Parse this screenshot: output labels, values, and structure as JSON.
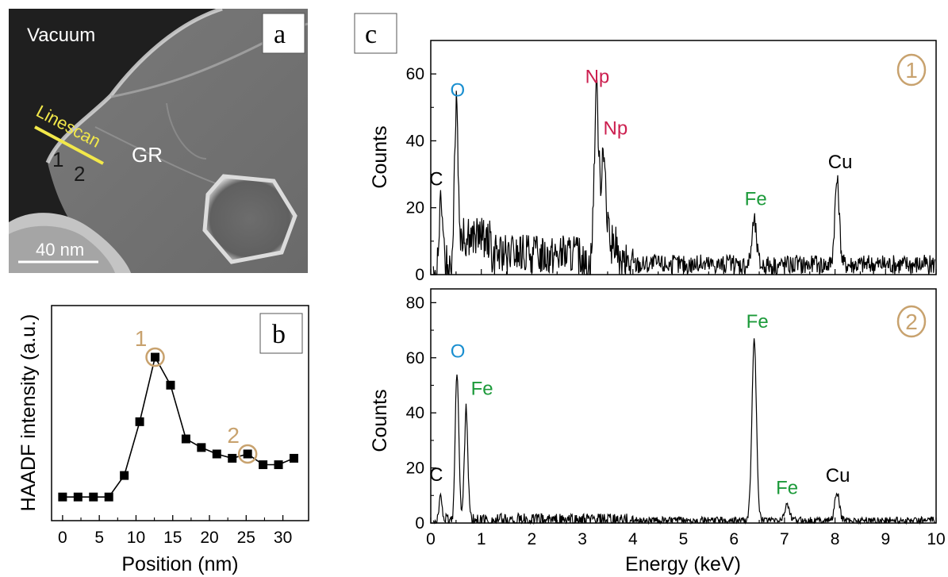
{
  "panel_a": {
    "letter": "a",
    "labels": {
      "vacuum": "Vacuum",
      "gr": "GR",
      "linescan": "Linescan",
      "point1": "1",
      "point2": "2"
    },
    "scale_bar": "40 nm"
  },
  "panel_b": {
    "letter": "b",
    "marker_labels": {
      "p1": "1",
      "p2": "2"
    }
  },
  "panel_c": {
    "letter": "c",
    "spectrum1_marker": "1",
    "spectrum2_marker": "2",
    "shared_xlabel": "Energy (keV)"
  },
  "colors": {
    "O": "#1a8fd0",
    "Np": "#cc1f4f",
    "Fe": "#1c9a3a",
    "C": "#000000",
    "Cu": "#000000",
    "marker_ring": "#c8a26e",
    "linescan": "#f2e84a"
  },
  "chart_data": [
    {
      "type": "line",
      "name": "b",
      "xlabel": "Position (nm)",
      "ylabel": "HAADF intensity (a.u.)",
      "xlim": [
        -1.5,
        33.5
      ],
      "ylim": [
        0,
        1
      ],
      "xticks": [
        "0",
        "5",
        "10",
        "15",
        "20",
        "25",
        "30"
      ],
      "x": [
        0,
        2.1,
        4.2,
        6.3,
        8.4,
        10.5,
        12.6,
        14.7,
        16.8,
        18.9,
        21.0,
        23.1,
        25.2,
        27.3,
        29.4,
        31.5
      ],
      "y": [
        0.11,
        0.11,
        0.11,
        0.11,
        0.21,
        0.46,
        0.76,
        0.63,
        0.38,
        0.34,
        0.31,
        0.29,
        0.31,
        0.26,
        0.26,
        0.29
      ],
      "highlighted_points": [
        {
          "label": "1",
          "x": 12.6
        },
        {
          "label": "2",
          "x": 25.2
        }
      ]
    },
    {
      "type": "line",
      "name": "c1",
      "xlabel": "",
      "ylabel": "Counts",
      "xlim": [
        0,
        10
      ],
      "ylim": [
        0,
        70
      ],
      "yticks": [
        "0",
        "20",
        "40",
        "60"
      ],
      "peaks": [
        {
          "label": "C",
          "energy": 0.2,
          "counts": 20
        },
        {
          "label": "O",
          "energy": 0.5,
          "counts": 50
        },
        {
          "label": "Np",
          "energy": 3.28,
          "counts": 54
        },
        {
          "label": "Np",
          "energy": 3.42,
          "counts": 39
        },
        {
          "label": "Fe",
          "energy": 6.4,
          "counts": 16
        },
        {
          "label": "Cu",
          "energy": 8.04,
          "counts": 28
        }
      ],
      "background": 3
    },
    {
      "type": "line",
      "name": "c2",
      "xlabel": "Energy (keV)",
      "ylabel": "Counts",
      "xlim": [
        0,
        10
      ],
      "ylim": [
        0,
        85
      ],
      "xticks": [
        "0",
        "1",
        "2",
        "3",
        "4",
        "5",
        "6",
        "7",
        "8",
        "9",
        "10"
      ],
      "yticks": [
        "0",
        "20",
        "40",
        "60",
        "80"
      ],
      "peaks": [
        {
          "label": "C",
          "energy": 0.2,
          "counts": 9
        },
        {
          "label": "O",
          "energy": 0.52,
          "counts": 56
        },
        {
          "label": "Fe",
          "energy": 0.7,
          "counts": 41
        },
        {
          "label": "Fe",
          "energy": 6.4,
          "counts": 66
        },
        {
          "label": "Fe",
          "energy": 7.05,
          "counts": 7
        },
        {
          "label": "Cu",
          "energy": 8.04,
          "counts": 11
        }
      ],
      "background": 1
    }
  ]
}
